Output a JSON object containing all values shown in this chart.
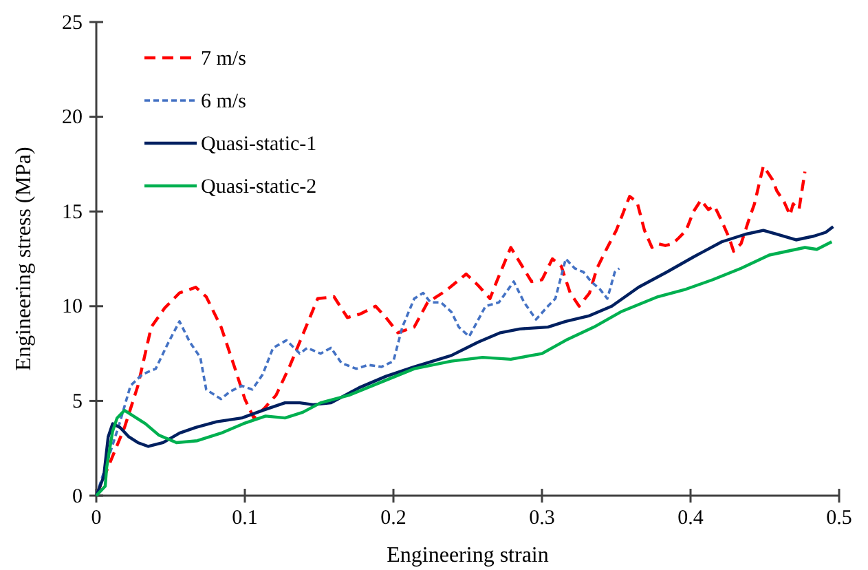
{
  "chart_data": {
    "type": "line",
    "xlabel": "Engineering strain",
    "ylabel": "Engineering stress (MPa)",
    "xlim": [
      0,
      0.5
    ],
    "xticks": [
      0,
      0.1,
      0.2,
      0.3,
      0.4,
      0.5
    ],
    "ylim": [
      0,
      25
    ],
    "yticks": [
      0,
      5,
      10,
      15,
      20,
      25
    ],
    "grid": false,
    "legend": "top left",
    "marker": "none",
    "series": [
      {
        "name": "7 m/s",
        "color": "#ff0000",
        "line_style": "dashed",
        "x": [
          0,
          0.009,
          0.019,
          0.028,
          0.037,
          0.046,
          0.056,
          0.067,
          0.074,
          0.084,
          0.093,
          0.1,
          0.106,
          0.113,
          0.121,
          0.13,
          0.139,
          0.149,
          0.16,
          0.169,
          0.178,
          0.188,
          0.195,
          0.203,
          0.214,
          0.223,
          0.235,
          0.249,
          0.257,
          0.265,
          0.27,
          0.279,
          0.286,
          0.293,
          0.3,
          0.307,
          0.313,
          0.319,
          0.325,
          0.332,
          0.337,
          0.344,
          0.35,
          0.355,
          0.359,
          0.364,
          0.369,
          0.374,
          0.378,
          0.383,
          0.388,
          0.392,
          0.397,
          0.402,
          0.407,
          0.412,
          0.416,
          0.421,
          0.426,
          0.429,
          0.434,
          0.439,
          0.443,
          0.449,
          0.455,
          0.458,
          0.463,
          0.467,
          0.469,
          0.473,
          0.477
        ],
        "values": [
          0,
          1.7,
          3.6,
          5.8,
          8.9,
          9.9,
          10.7,
          11,
          10.5,
          8.9,
          6.8,
          5.1,
          4.1,
          4.6,
          5.3,
          6.8,
          8.5,
          10.4,
          10.5,
          9.4,
          9.6,
          10,
          9.4,
          8.6,
          8.9,
          10.2,
          10.8,
          11.7,
          11.1,
          10.4,
          11.4,
          13.1,
          12.2,
          11.3,
          11.4,
          12.5,
          12.1,
          10.7,
          10,
          10.7,
          12,
          13.1,
          14,
          15,
          15.8,
          15.5,
          14,
          13.1,
          13.3,
          13.2,
          13.3,
          13.6,
          14,
          15,
          15.6,
          15.1,
          15.3,
          14.5,
          13.6,
          12.9,
          13.3,
          14.5,
          15.4,
          17.4,
          16.7,
          16.1,
          15.5,
          14.8,
          15.4,
          15.1,
          17.1
        ]
      },
      {
        "name": "6 m/s",
        "color": "#4472c4",
        "line_style": "dotted",
        "x": [
          0,
          0.007,
          0.016,
          0.023,
          0.031,
          0.04,
          0.048,
          0.056,
          0.063,
          0.07,
          0.074,
          0.084,
          0.09,
          0.098,
          0.105,
          0.112,
          0.119,
          0.128,
          0.137,
          0.142,
          0.151,
          0.158,
          0.165,
          0.175,
          0.183,
          0.192,
          0.2,
          0.206,
          0.214,
          0.22,
          0.225,
          0.232,
          0.239,
          0.244,
          0.251,
          0.262,
          0.271,
          0.281,
          0.288,
          0.296,
          0.304,
          0.309,
          0.316,
          0.322,
          0.328,
          0.333,
          0.339,
          0.344,
          0.349,
          0.352
        ],
        "values": [
          0,
          1.7,
          3.9,
          5.8,
          6.4,
          6.7,
          8,
          9.2,
          8.1,
          7.3,
          5.6,
          5.1,
          5.5,
          5.8,
          5.6,
          6.4,
          7.8,
          8.2,
          7.5,
          7.8,
          7.5,
          7.8,
          7,
          6.7,
          6.9,
          6.8,
          7.1,
          8.9,
          10.4,
          10.7,
          10.2,
          10.2,
          9.7,
          8.9,
          8.4,
          10,
          10.2,
          11.3,
          10.2,
          9.3,
          10,
          10.4,
          12.5,
          12,
          11.8,
          11.3,
          10.9,
          10.4,
          11.8,
          12
        ]
      },
      {
        "name": "Quasi-static-1",
        "color": "#002060",
        "line_style": "solid",
        "x": [
          0,
          0.005,
          0.008,
          0.011,
          0.016,
          0.022,
          0.028,
          0.035,
          0.045,
          0.056,
          0.067,
          0.081,
          0.098,
          0.112,
          0.127,
          0.137,
          0.146,
          0.158,
          0.177,
          0.195,
          0.214,
          0.239,
          0.257,
          0.272,
          0.285,
          0.304,
          0.316,
          0.332,
          0.347,
          0.365,
          0.384,
          0.402,
          0.421,
          0.437,
          0.449,
          0.458,
          0.471,
          0.483,
          0.491,
          0.496
        ],
        "values": [
          0,
          1,
          3.1,
          3.8,
          3.6,
          3.1,
          2.8,
          2.6,
          2.8,
          3.3,
          3.6,
          3.9,
          4.1,
          4.5,
          4.9,
          4.9,
          4.8,
          4.9,
          5.7,
          6.3,
          6.8,
          7.4,
          8.1,
          8.6,
          8.8,
          8.9,
          9.2,
          9.5,
          10,
          11,
          11.8,
          12.6,
          13.4,
          13.8,
          14,
          13.8,
          13.5,
          13.7,
          13.9,
          14.2
        ]
      },
      {
        "name": "Quasi-static-2",
        "color": "#00b050",
        "line_style": "solid",
        "x": [
          0,
          0.006,
          0.007,
          0.011,
          0.014,
          0.019,
          0.025,
          0.033,
          0.042,
          0.054,
          0.068,
          0.084,
          0.099,
          0.114,
          0.127,
          0.139,
          0.151,
          0.17,
          0.192,
          0.214,
          0.239,
          0.26,
          0.279,
          0.3,
          0.316,
          0.335,
          0.353,
          0.378,
          0.397,
          0.415,
          0.434,
          0.453,
          0.465,
          0.477,
          0.485,
          0.495
        ],
        "values": [
          0,
          0.5,
          1.5,
          3.4,
          4.1,
          4.5,
          4.2,
          3.8,
          3.2,
          2.8,
          2.9,
          3.3,
          3.8,
          4.2,
          4.1,
          4.4,
          4.9,
          5.3,
          6,
          6.7,
          7.1,
          7.3,
          7.2,
          7.5,
          8.2,
          8.9,
          9.7,
          10.5,
          10.9,
          11.4,
          12,
          12.7,
          12.9,
          13.1,
          13,
          13.4
        ]
      }
    ]
  }
}
